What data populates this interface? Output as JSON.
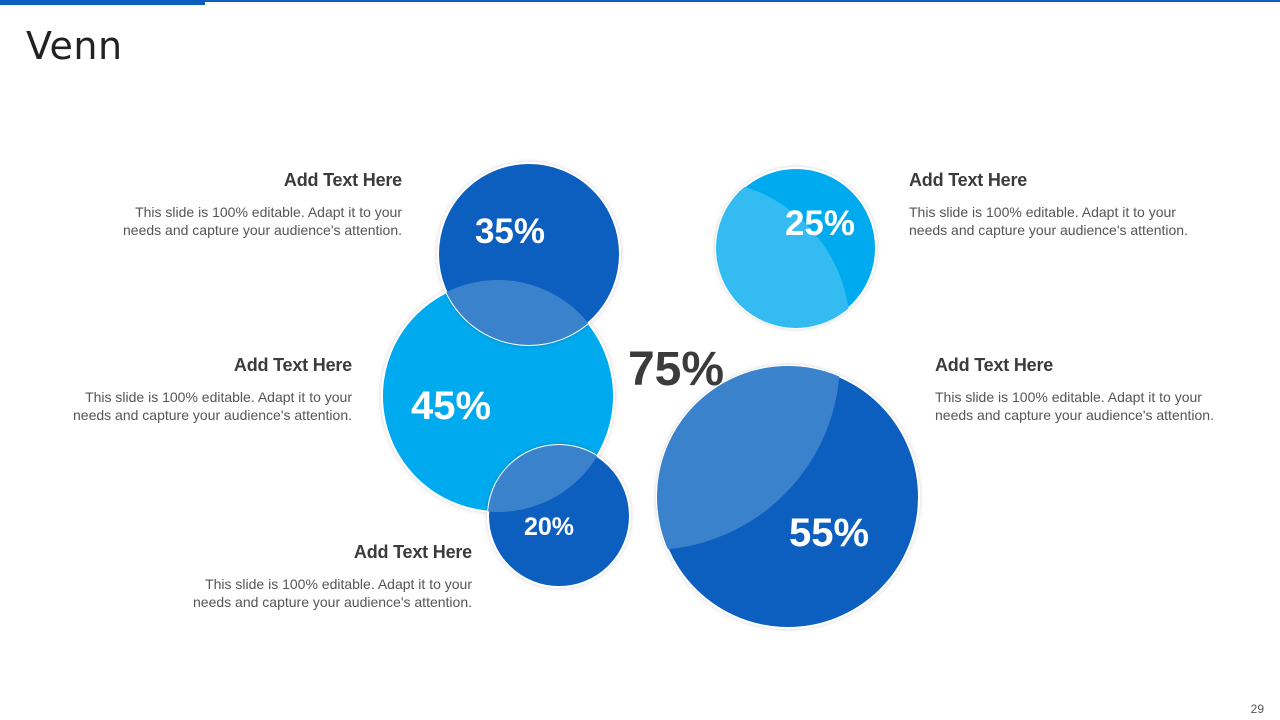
{
  "slide": {
    "title": "Venn",
    "page_number": "29",
    "center_value": "75%"
  },
  "colors": {
    "accent": "#0a5fbf",
    "dark_blue": "#0a5fbf",
    "light_blue": "#02aaee",
    "overlap_dark": "#3b82cc",
    "overlap_light": "#33bbf2"
  },
  "circles": [
    {
      "id": "c35",
      "label": "35%",
      "color": "dark_blue"
    },
    {
      "id": "c45",
      "label": "45%",
      "color": "light_blue"
    },
    {
      "id": "c20",
      "label": "20%",
      "color": "dark_blue"
    },
    {
      "id": "c25",
      "label": "25%",
      "color": "light_blue"
    },
    {
      "id": "c55",
      "label": "55%",
      "color": "dark_blue"
    }
  ],
  "items": [
    {
      "heading": "Add Text Here",
      "body": "This slide is 100% editable. Adapt it to your needs and capture your audience's attention."
    },
    {
      "heading": "Add Text Here",
      "body": "This slide is 100% editable. Adapt it to your needs and capture your audience's attention."
    },
    {
      "heading": "Add Text Here",
      "body": "This slide is 100% editable. Adapt it to your needs and capture your audience's attention."
    },
    {
      "heading": "Add Text Here",
      "body": "This slide is 100% editable. Adapt it to your needs and capture your audience's attention."
    },
    {
      "heading": "Add Text Here",
      "body": "This slide is 100% editable. Adapt it to your needs and capture your audience's attention."
    }
  ]
}
